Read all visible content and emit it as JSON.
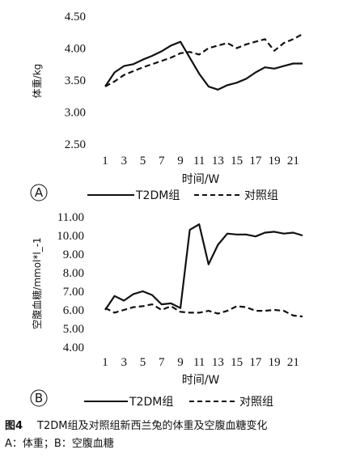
{
  "chart_data": [
    {
      "type": "line",
      "panel_label": "A",
      "xlabel": "时间/W",
      "ylabel": "体重/kg",
      "x": [
        1,
        2,
        3,
        4,
        5,
        6,
        7,
        8,
        9,
        10,
        11,
        12,
        13,
        14,
        15,
        16,
        17,
        18,
        19,
        20,
        21,
        22
      ],
      "x_ticks": [
        "1",
        "3",
        "5",
        "7",
        "9",
        "11",
        "13",
        "15",
        "17",
        "19",
        "21"
      ],
      "y_ticks": [
        "4.50",
        "4.00",
        "3.50",
        "3.00",
        "2.50"
      ],
      "xlim": [
        1,
        22
      ],
      "ylim": [
        2.5,
        4.5
      ],
      "series": [
        {
          "name": "T2DM组",
          "style": "solid",
          "values": [
            3.4,
            3.62,
            3.72,
            3.75,
            3.82,
            3.88,
            3.95,
            4.04,
            4.1,
            3.85,
            3.6,
            3.4,
            3.35,
            3.42,
            3.46,
            3.52,
            3.62,
            3.7,
            3.68,
            3.72,
            3.76,
            3.76
          ]
        },
        {
          "name": "对照组",
          "style": "dashed",
          "values": [
            3.4,
            3.48,
            3.58,
            3.64,
            3.7,
            3.75,
            3.8,
            3.85,
            3.92,
            3.94,
            3.9,
            4.0,
            4.04,
            4.08,
            4.0,
            4.06,
            4.1,
            4.14,
            3.96,
            4.08,
            4.14,
            4.22
          ]
        }
      ]
    },
    {
      "type": "line",
      "panel_label": "B",
      "xlabel": "时间/W",
      "ylabel": "空腹血糖/mmol*l_-1",
      "x": [
        1,
        2,
        3,
        4,
        5,
        6,
        7,
        8,
        9,
        10,
        11,
        12,
        13,
        14,
        15,
        16,
        17,
        18,
        19,
        20,
        21,
        22
      ],
      "x_ticks": [
        "1",
        "3",
        "5",
        "7",
        "9",
        "11",
        "13",
        "15",
        "17",
        "19",
        "21"
      ],
      "y_ticks": [
        "11.00",
        "10.00",
        "9.00",
        "8.00",
        "7.00",
        "6.00",
        "5.00",
        "4.00"
      ],
      "xlim": [
        1,
        22
      ],
      "ylim": [
        4.0,
        11.0
      ],
      "series": [
        {
          "name": "T2DM组",
          "style": "solid",
          "values": [
            6.0,
            6.75,
            6.5,
            6.85,
            7.0,
            6.8,
            6.3,
            6.35,
            6.1,
            10.3,
            10.6,
            8.45,
            9.5,
            10.1,
            10.05,
            10.05,
            9.95,
            10.15,
            10.2,
            10.1,
            10.15,
            10.0
          ]
        },
        {
          "name": "对照组",
          "style": "dashed",
          "values": [
            6.1,
            5.85,
            6.0,
            6.15,
            6.2,
            6.3,
            6.0,
            6.2,
            5.9,
            5.85,
            5.85,
            5.95,
            5.8,
            5.95,
            6.2,
            6.15,
            5.95,
            5.95,
            6.0,
            5.95,
            5.7,
            5.65
          ]
        }
      ]
    }
  ],
  "caption": {
    "label": "图4",
    "title": "T2DM组及对照组新西兰兔的体重及空腹血糖变化",
    "line2": "A：体重；B：空腹血糖"
  },
  "colors": {
    "line": "#111111",
    "axis": "#111111"
  }
}
